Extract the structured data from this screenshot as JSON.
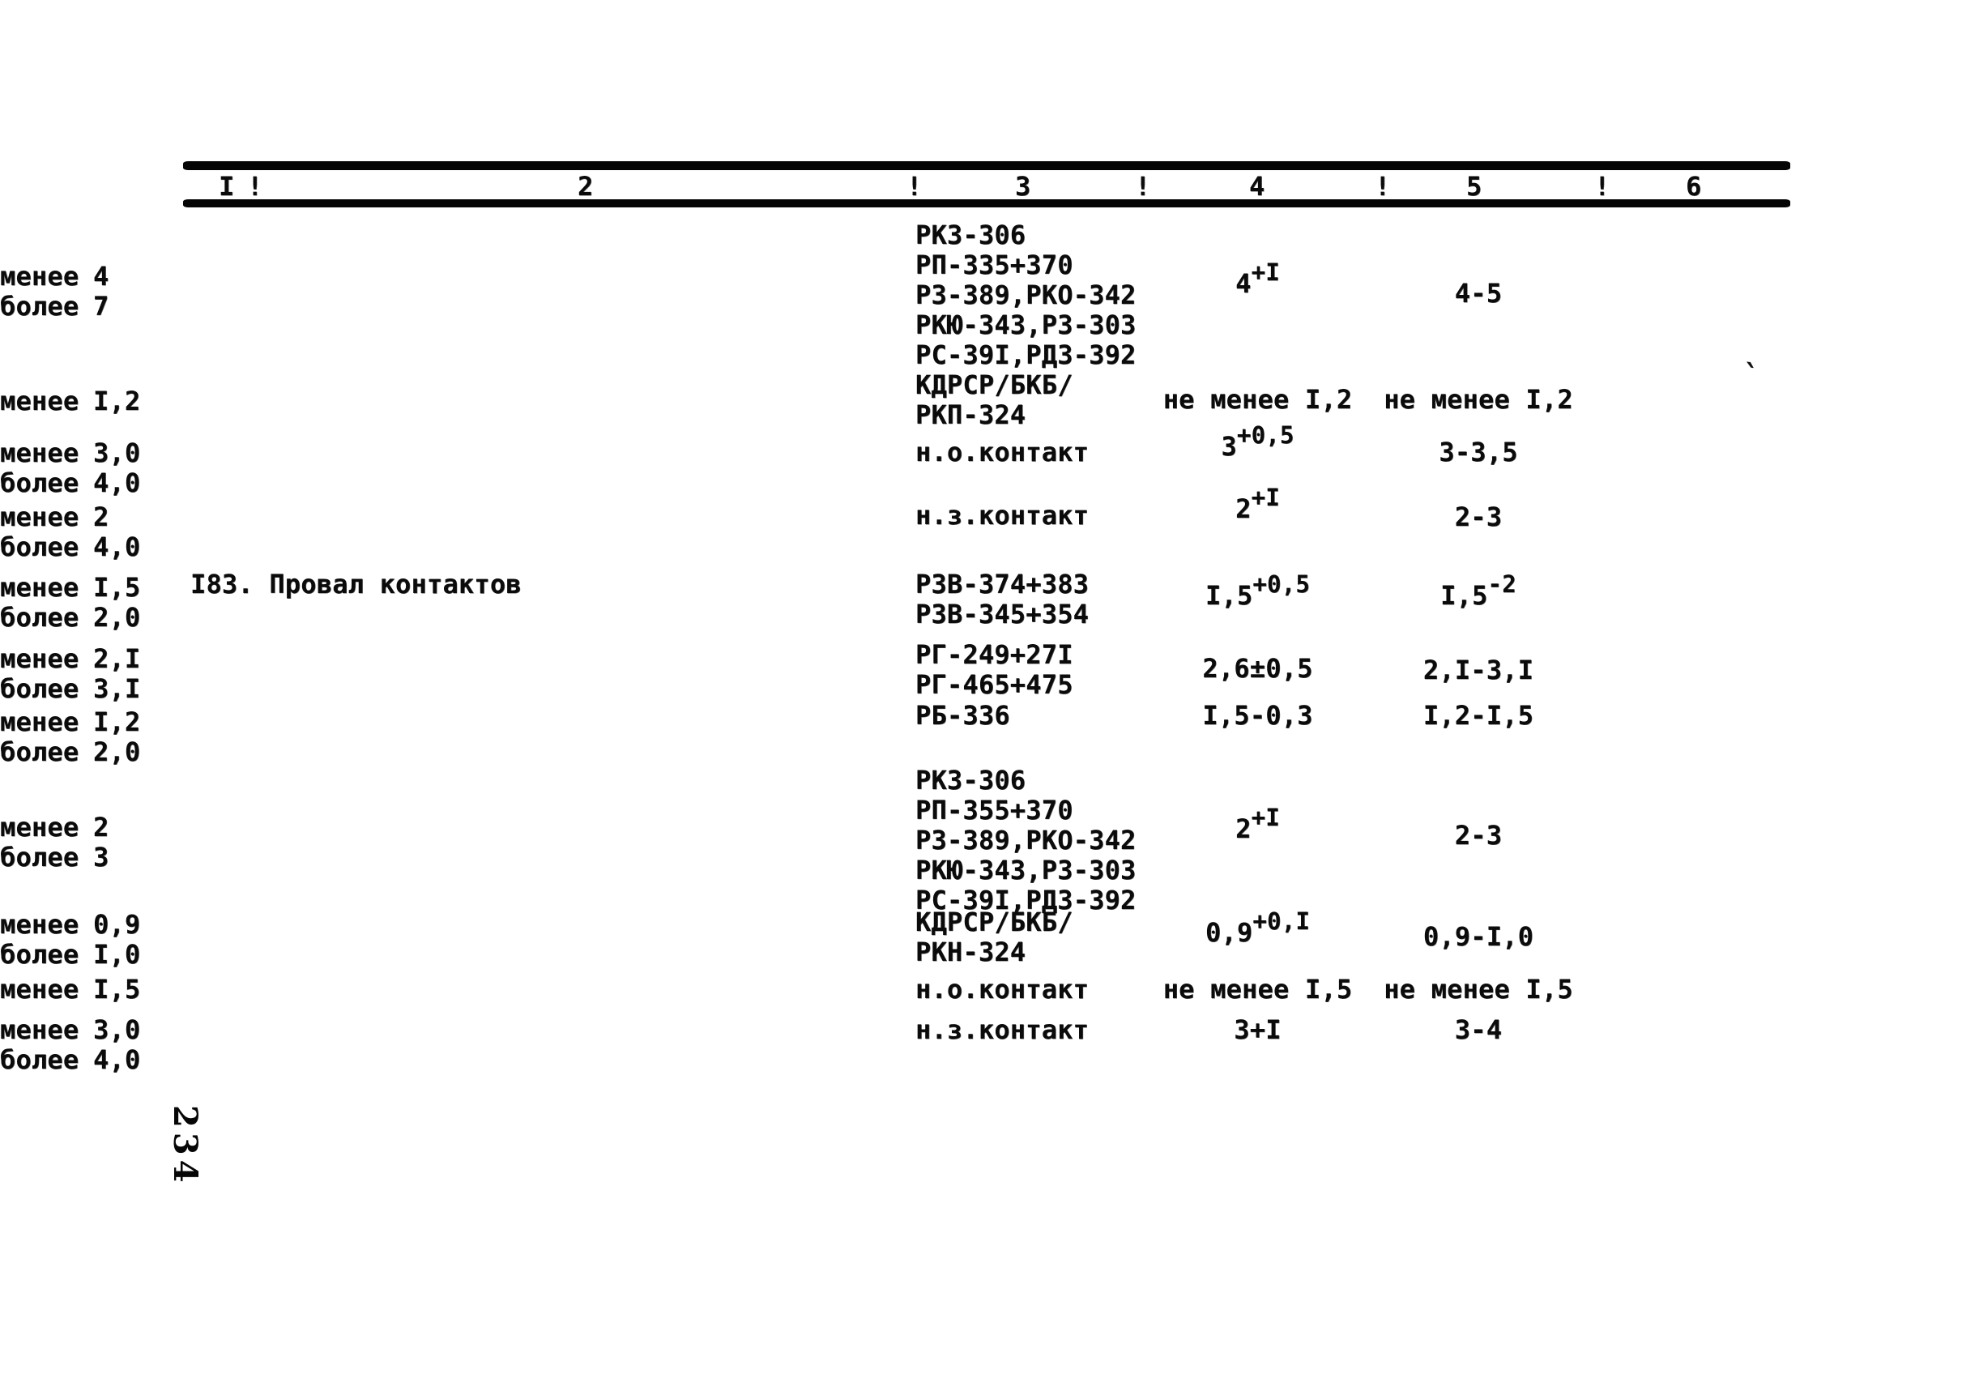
{
  "page": {
    "number_vertical": "234",
    "artifact_mark": "`"
  },
  "table": {
    "header_cells": [
      "I",
      "!",
      "2",
      "!",
      "3",
      "!",
      "4",
      "!",
      "5",
      "!",
      "6"
    ],
    "row_label": "I83. Провал контактов",
    "rows": [
      {
        "equipment": [
          "РКЗ-306",
          "РП-335+370",
          "РЗ-389,РКО-342",
          "РКЮ-343,РЗ-303",
          "РС-39I,РДЗ-392"
        ],
        "norm": {
          "base": "4",
          "sup": "+I"
        },
        "range": {
          "text": "4-5"
        },
        "limits": [
          {
            "label": "менее",
            "value": "4"
          },
          {
            "label": "более",
            "value": "7"
          }
        ]
      },
      {
        "equipment": [
          "КДРСР/БКБ/",
          "РКП-324"
        ],
        "norm": {
          "text": "не менее I,2"
        },
        "range": {
          "text": "не менее I,2"
        },
        "limits": [
          {
            "label": "менее",
            "value": "I,2"
          }
        ]
      },
      {
        "equipment": [
          "н.о.контакт"
        ],
        "norm": {
          "base": "3",
          "sup": "+0,5"
        },
        "range": {
          "text": "3-3,5"
        },
        "limits": [
          {
            "label": "менее",
            "value": "3,0"
          },
          {
            "label": "более",
            "value": "4,0"
          }
        ]
      },
      {
        "equipment": [
          "н.з.контакт"
        ],
        "norm": {
          "base": "2",
          "sup": "+I"
        },
        "range": {
          "text": "2-3"
        },
        "limits": [
          {
            "label": "менее",
            "value": "2"
          },
          {
            "label": "более",
            "value": "4,0"
          }
        ]
      },
      {
        "equipment": [
          "РЗВ-374+383",
          "РЗВ-345+354"
        ],
        "norm": {
          "base": "I,5",
          "sup": "+0,5"
        },
        "range": {
          "base": "I,5",
          "sup": "-2"
        },
        "limits": [
          {
            "label": "менее",
            "value": "I,5"
          },
          {
            "label": "более",
            "value": "2,0"
          }
        ]
      },
      {
        "equipment": [
          "РГ-249+27I",
          "РГ-465+475"
        ],
        "norm": {
          "text": "2,6±0,5"
        },
        "range": {
          "text": "2,I-3,I"
        },
        "limits": [
          {
            "label": "менее",
            "value": "2,I"
          },
          {
            "label": "более",
            "value": "3,I"
          }
        ]
      },
      {
        "equipment": [
          "РБ-336"
        ],
        "norm": {
          "text": "I,5-0,3"
        },
        "range": {
          "text": "I,2-I,5"
        },
        "limits": [
          {
            "label": "менее",
            "value": "I,2"
          },
          {
            "label": "более",
            "value": "2,0"
          }
        ]
      },
      {
        "equipment": [
          "РКЗ-306",
          "РП-355+370",
          "РЗ-389,РКО-342",
          "РКЮ-343,РЗ-303",
          "РС-39I,РДЗ-392"
        ],
        "norm": {
          "base": "2",
          "sup": "+I"
        },
        "range": {
          "text": "2-3"
        },
        "limits": [
          {
            "label": "менее",
            "value": "2"
          },
          {
            "label": "более",
            "value": "3"
          }
        ]
      },
      {
        "equipment": [
          "КДРСР/БКБ/",
          "РКН-324"
        ],
        "norm": {
          "base": "0,9",
          "sup": "+0,I"
        },
        "range": {
          "text": "0,9-I,0"
        },
        "limits": [
          {
            "label": "менее",
            "value": "0,9"
          },
          {
            "label": "более",
            "value": "I,0"
          }
        ]
      },
      {
        "equipment": [
          "н.о.контакт"
        ],
        "norm": {
          "text": "не менее I,5"
        },
        "range": {
          "text": "не менее I,5"
        },
        "limits": [
          {
            "label": "менее",
            "value": "I,5"
          }
        ]
      },
      {
        "equipment": [
          "н.з.контакт"
        ],
        "norm": {
          "text": "3+I"
        },
        "range": {
          "text": "3-4"
        },
        "limits": [
          {
            "label": "менее",
            "value": "3,0"
          },
          {
            "label": "более",
            "value": "4,0"
          }
        ]
      }
    ]
  }
}
